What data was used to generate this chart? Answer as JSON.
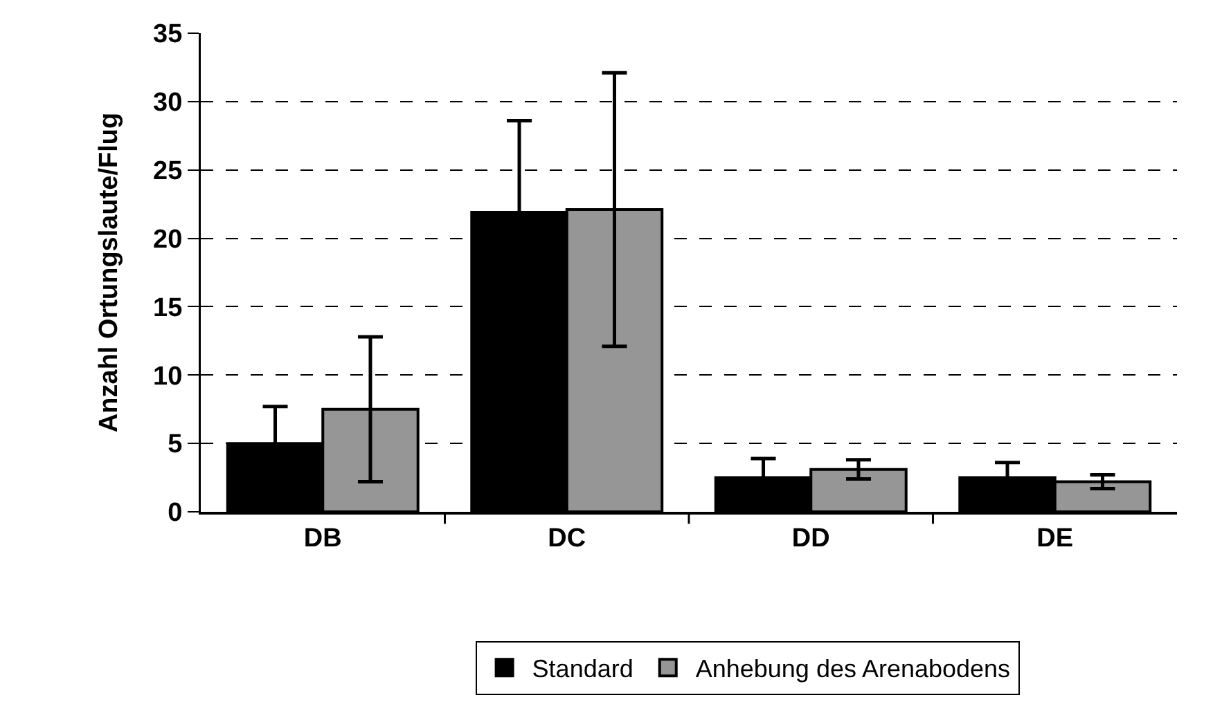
{
  "chart_data": {
    "type": "bar",
    "ylabel": "Anzahl Ortungslaute/Flug",
    "categories": [
      "DB",
      "DC",
      "DD",
      "DE"
    ],
    "series": [
      {
        "name": "Standard",
        "color": "#000000",
        "values": [
          5.0,
          21.9,
          2.5,
          2.5
        ],
        "errors": [
          2.7,
          6.7,
          1.4,
          1.1
        ]
      },
      {
        "name": "Anhebung des Arenabodens",
        "color": "#969696",
        "values": [
          7.5,
          22.1,
          3.1,
          2.2
        ],
        "errors": [
          5.3,
          10.0,
          0.7,
          0.5
        ]
      }
    ],
    "ylim": [
      0,
      35
    ],
    "yticks": [
      0,
      5,
      10,
      15,
      20,
      25,
      30,
      35
    ],
    "grid": "y",
    "legend": "bottom"
  }
}
